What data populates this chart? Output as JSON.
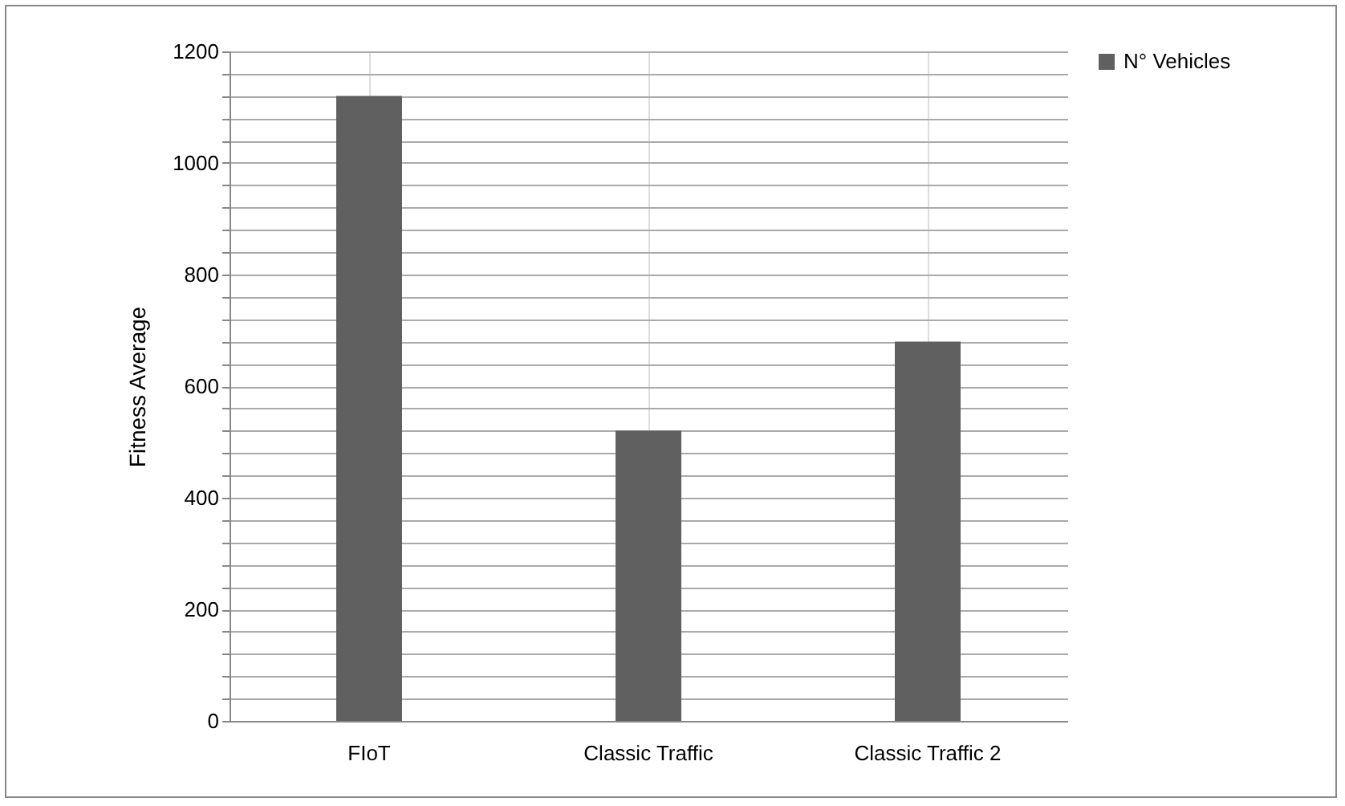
{
  "chart_data": {
    "type": "bar",
    "ylabel": "Fitness Average",
    "categories": [
      "FIoT",
      "Classic Traffic",
      "Classic Traffic 2"
    ],
    "series": [
      {
        "name": "N° Vehicles",
        "color": "#606060",
        "values": [
          1120,
          520,
          680
        ]
      }
    ],
    "ylim": [
      0,
      1200
    ],
    "yticks": [
      0,
      {
        "value": 40,
        "label": null
      },
      {
        "value": 80,
        "label": null
      },
      {
        "value": 120,
        "label": null
      },
      {
        "value": 160,
        "label": null
      },
      200,
      {
        "value": 240,
        "label": null
      },
      {
        "value": 280,
        "label": null
      },
      {
        "value": 320,
        "label": null
      },
      {
        "value": 360,
        "label": null
      },
      400,
      {
        "value": 440,
        "label": null
      },
      {
        "value": 480,
        "label": null
      },
      {
        "value": 520,
        "label": null
      },
      {
        "value": 560,
        "label": null
      },
      600,
      {
        "value": 640,
        "label": null
      },
      {
        "value": 680,
        "label": null
      },
      {
        "value": 720,
        "label": null
      },
      {
        "value": 760,
        "label": null
      },
      800,
      {
        "value": 840,
        "label": null
      },
      {
        "value": 880,
        "label": null
      },
      {
        "value": 920,
        "label": null
      },
      {
        "value": 960,
        "label": null
      },
      1000,
      {
        "value": 1040,
        "label": null
      },
      {
        "value": 1080,
        "label": null
      },
      {
        "value": 1120,
        "label": null
      },
      {
        "value": 1160,
        "label": null
      },
      1200
    ],
    "grid": true,
    "legend": "right"
  }
}
